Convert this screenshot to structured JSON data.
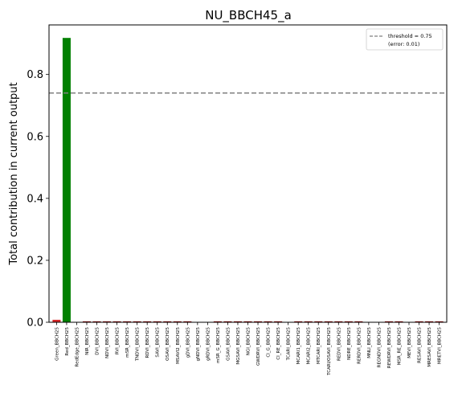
{
  "chart_data": {
    "type": "bar",
    "title": "NU_BBCH45_a",
    "xlabel": "",
    "ylabel": "Total contribution in current output",
    "ylim": [
      0,
      0.96
    ],
    "yticks": [
      "0.0",
      "0.2",
      "0.4",
      "0.6",
      "0.8"
    ],
    "categories": [
      "Green_BBCH25",
      "Red_BBCH25",
      "RedEdge_BBCH25",
      "NIR_BBCH25",
      "DVI_BBCH25",
      "NDVI_BBCH25",
      "RVI_BBCH25",
      "mSR_BBCH25",
      "TNDVI_BBCH25",
      "RDVI_BBCH25",
      "SAVI_BBCH25",
      "OSAVI_BBCH25",
      "MSAVI2_BBCH25",
      "gDVI_BBCH25",
      "gNDVI_BBCH25",
      "gRDVI_BBCH25",
      "mSR_G_BBCH25",
      "GSAVI_BBCH25",
      "MGSAVI_BBCH25",
      "NGI_BBCH25",
      "GWDRVI_BBCH25",
      "CI_G_BBCH25",
      "CI_RE_BBCH25",
      "TCARI_BBCH25",
      "MCARI1_BBCH25",
      "MCARI2_BBCH25",
      "MTCARI_BBCH25",
      "TCARI/OSAVI_BBCH25",
      "REDVI_BBCH25",
      "NDRE_BBCH25",
      "RERDVI_BBCH25",
      "MNLI_BBCH25",
      "REGNDVI_BBCH25",
      "REWDRVI_BBCH25",
      "MSR_RE_BBCH25",
      "MEVI_BBCH25",
      "RESAVI_BBCH25",
      "MRESAVI_BBCH25",
      "MRETVI_BBCH25"
    ],
    "values": [
      0.008,
      0.918,
      0.0,
      0.003,
      0.003,
      0.003,
      0.003,
      0.003,
      0.003,
      0.003,
      0.003,
      0.003,
      0.003,
      0.003,
      0.0,
      0.0,
      0.003,
      0.003,
      0.003,
      0.003,
      0.003,
      0.003,
      0.003,
      0.0,
      0.003,
      0.003,
      0.003,
      0.003,
      0.003,
      0.003,
      0.003,
      0.0,
      0.0,
      0.003,
      0.003,
      0.0,
      0.003,
      0.003,
      0.003
    ],
    "bar_colors": [
      "#d62728",
      "#008000",
      "#d62728",
      "#8b0000",
      "#8b0000",
      "#8b0000",
      "#8b0000",
      "#8b0000",
      "#8b0000",
      "#8b0000",
      "#8b0000",
      "#8b0000",
      "#8b0000",
      "#8b0000",
      "#8b0000",
      "#8b0000",
      "#8b0000",
      "#8b0000",
      "#8b0000",
      "#8b0000",
      "#8b0000",
      "#8b0000",
      "#8b0000",
      "#8b0000",
      "#8b0000",
      "#8b0000",
      "#8b0000",
      "#8b0000",
      "#8b0000",
      "#8b0000",
      "#8b0000",
      "#8b0000",
      "#8b0000",
      "#8b0000",
      "#8b0000",
      "#8b0000",
      "#8b0000",
      "#8b0000",
      "#8b0000"
    ],
    "threshold": {
      "value": 0.74,
      "label": "threshold = 0.75",
      "error_label": "(error: 0.01)",
      "color": "#808080",
      "style": "dashed"
    },
    "legend": {
      "position": "top-right"
    }
  }
}
